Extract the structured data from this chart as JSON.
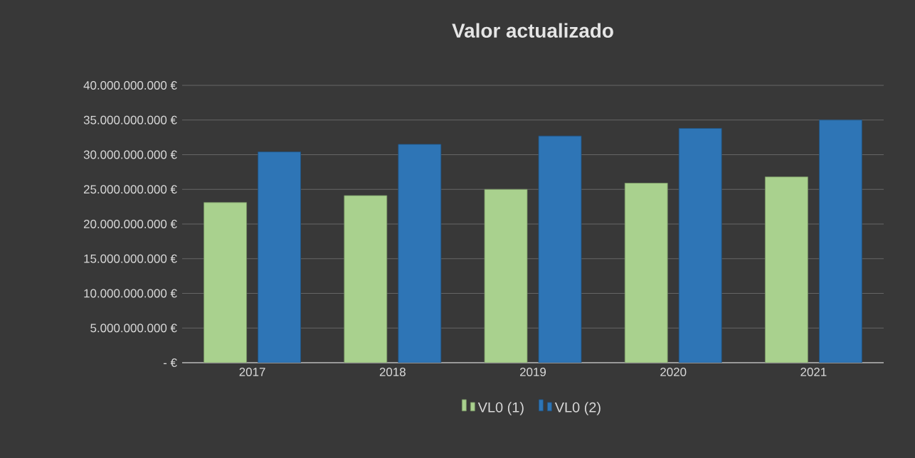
{
  "chart_data": {
    "type": "bar",
    "title": "Valor actualizado",
    "categories": [
      "2017",
      "2018",
      "2019",
      "2020",
      "2021"
    ],
    "series": [
      {
        "name": "VL0 (1)",
        "color": "#a9d18e",
        "values": [
          23100000000,
          24100000000,
          25000000000,
          25900000000,
          26800000000
        ]
      },
      {
        "name": "VL0 (2)",
        "color": "#2e75b6",
        "values": [
          30400000000,
          31500000000,
          32700000000,
          33800000000,
          35000000000
        ]
      }
    ],
    "ylim": [
      0,
      40000000000
    ],
    "yticks": [
      {
        "value": 0,
        "label": "-   €"
      },
      {
        "value": 5000000000,
        "label": "5.000.000.000 €"
      },
      {
        "value": 10000000000,
        "label": "10.000.000.000 €"
      },
      {
        "value": 15000000000,
        "label": "15.000.000.000 €"
      },
      {
        "value": 20000000000,
        "label": "20.000.000.000 €"
      },
      {
        "value": 25000000000,
        "label": "25.000.000.000 €"
      },
      {
        "value": 30000000000,
        "label": "30.000.000.000 €"
      },
      {
        "value": 35000000000,
        "label": "35.000.000.000 €"
      },
      {
        "value": 40000000000,
        "label": "40.000.000.000 €"
      }
    ],
    "grid": "y",
    "legend": "bottom"
  }
}
